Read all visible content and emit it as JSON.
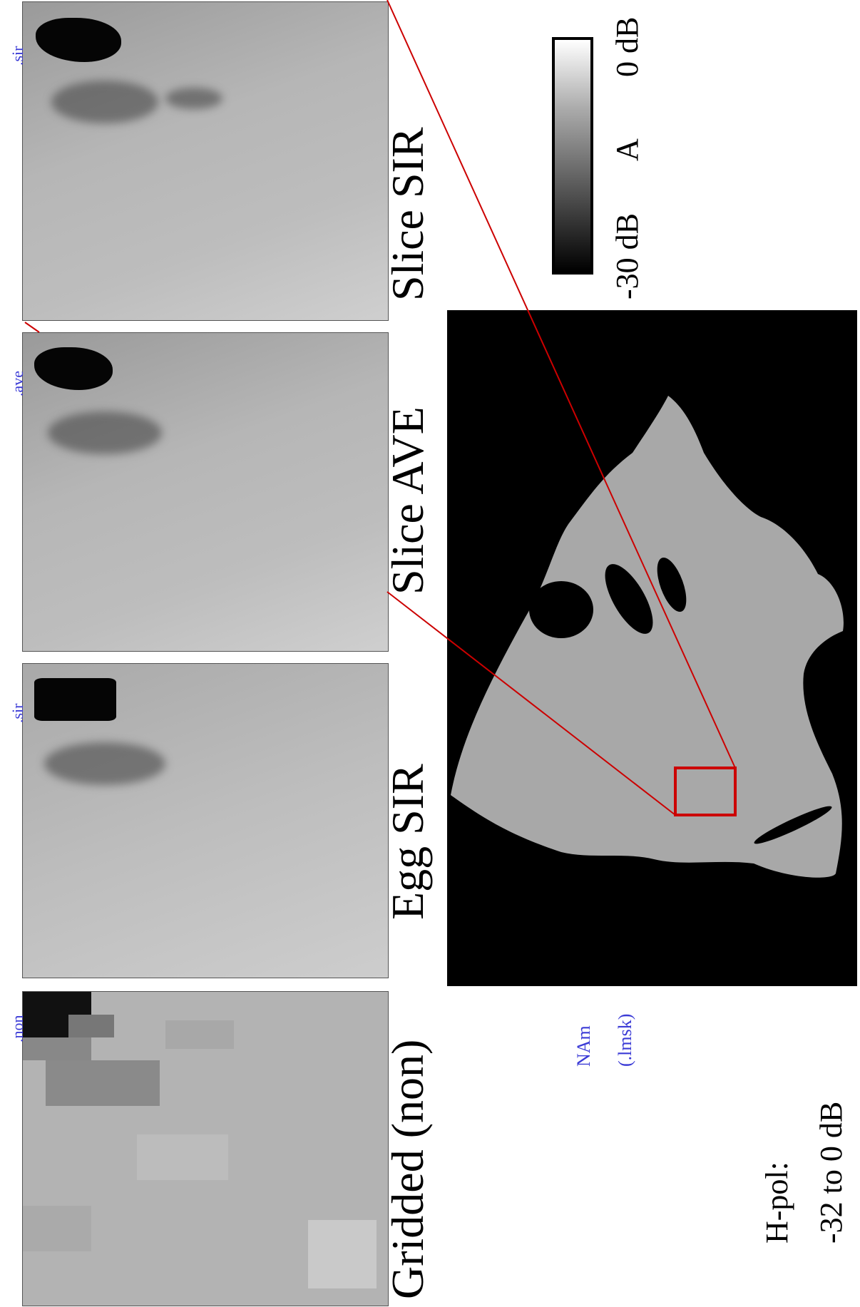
{
  "panels": [
    {
      "title": "Slice SIR",
      "tag": ".sir"
    },
    {
      "title": "Slice AVE",
      "tag": ".ave"
    },
    {
      "title": "Egg SIR",
      "tag": ".sir"
    },
    {
      "title": "Gridded (non)",
      "tag": ".non"
    }
  ],
  "colorbar": {
    "top_label": "0 dB",
    "mid_label": "A",
    "bottom_label": "-30 dB"
  },
  "map": {
    "region_label": "NAm",
    "mask_label": "(.lmsk)"
  },
  "polarization": {
    "line1": "H-pol:",
    "line2": "-32 to 0 dB"
  },
  "colors": {
    "zoom_box": "#cc0000",
    "tag_text": "#3b3bd6"
  }
}
